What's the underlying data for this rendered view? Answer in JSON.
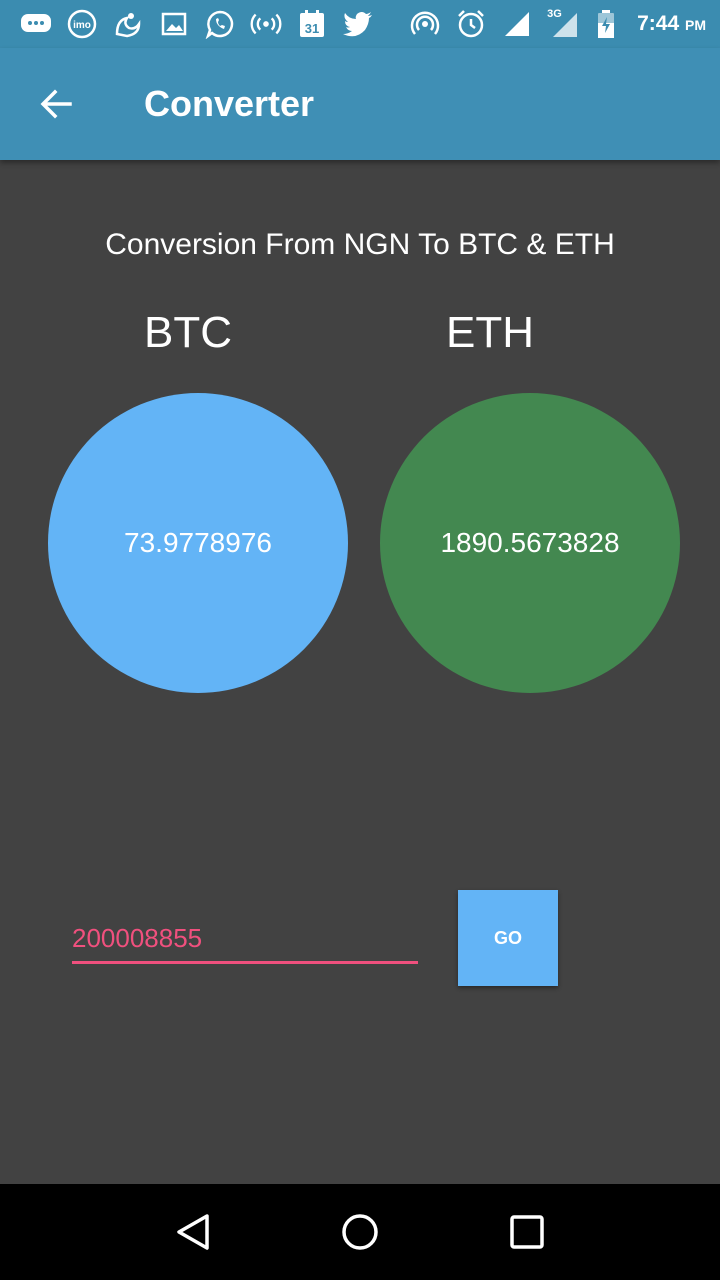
{
  "status_bar": {
    "icons": [
      "chat-icon",
      "imo-icon",
      "uc-browser-icon",
      "gallery-icon",
      "whatsapp-icon",
      "hotspot-icon",
      "calendar-icon",
      "twitter-icon",
      "broadcast-icon",
      "alarm-icon",
      "signal-icon",
      "signal-3g-icon",
      "battery-icon"
    ],
    "calendar_day": "31",
    "imo_text": "imo",
    "network_type": "3G",
    "time": "7:44",
    "ampm": "PM"
  },
  "app_bar": {
    "title": "Converter",
    "back_icon": "arrow-back-icon",
    "color": "#3f8fb5"
  },
  "main": {
    "heading": "Conversion From NGN To BTC & ETH",
    "btc": {
      "label": "BTC",
      "value": "73.9778976",
      "color": "#63b4f6"
    },
    "eth": {
      "label": "ETH",
      "value": "1890.5673828",
      "color": "#438850"
    }
  },
  "form": {
    "amount_value": "200008855",
    "go_label": "GO",
    "accent_color": "#f0507e"
  },
  "nav_bar": {
    "icons": [
      "back-triangle-icon",
      "home-circle-icon",
      "recents-square-icon"
    ]
  }
}
